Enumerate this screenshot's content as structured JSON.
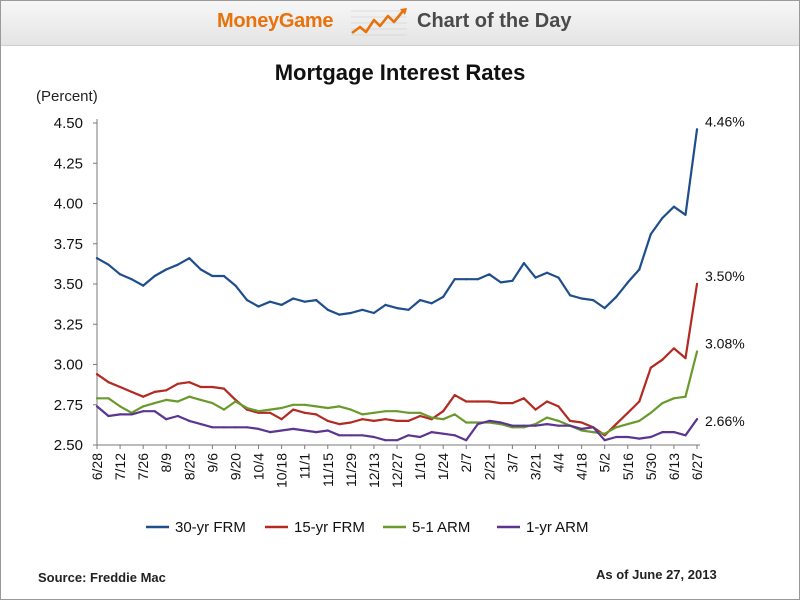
{
  "banner": {
    "brand": "MoneyGame",
    "title": "Chart of the Day",
    "icon": "rising-chart-icon",
    "brand_color": "#e8720c"
  },
  "footer": {
    "source": "Source: Freddie Mac",
    "as_of": "As of June 27, 2013"
  },
  "chart_data": {
    "type": "line",
    "title": "Mortgage Interest Rates",
    "unit_label": "(Percent)",
    "ylim": [
      2.5,
      4.5
    ],
    "yticks": [
      "2.50",
      "2.75",
      "3.00",
      "3.25",
      "3.50",
      "3.75",
      "4.00",
      "4.25",
      "4.50"
    ],
    "xtick_labels": [
      "6/28",
      "7/12",
      "7/26",
      "8/9",
      "8/23",
      "9/6",
      "9/20",
      "10/4",
      "10/18",
      "11/1",
      "11/15",
      "11/29",
      "12/13",
      "12/27",
      "1/10",
      "1/24",
      "2/7",
      "2/21",
      "3/7",
      "3/21",
      "4/4",
      "4/18",
      "5/2",
      "5/16",
      "5/30",
      "6/13",
      "6/27"
    ],
    "grid": false,
    "legend_position": "bottom",
    "series": [
      {
        "name": "30-yr FRM",
        "color": "#1f4e8c",
        "end_label": "4.46%",
        "values": [
          3.66,
          3.62,
          3.56,
          3.53,
          3.49,
          3.55,
          3.59,
          3.62,
          3.66,
          3.59,
          3.55,
          3.55,
          3.49,
          3.4,
          3.36,
          3.39,
          3.37,
          3.41,
          3.39,
          3.4,
          3.34,
          3.31,
          3.32,
          3.34,
          3.32,
          3.37,
          3.35,
          3.34,
          3.4,
          3.38,
          3.42,
          3.53,
          3.53,
          3.53,
          3.56,
          3.51,
          3.52,
          3.63,
          3.54,
          3.57,
          3.54,
          3.43,
          3.41,
          3.4,
          3.35,
          3.42,
          3.51,
          3.59,
          3.81,
          3.91,
          3.98,
          3.93,
          4.46
        ]
      },
      {
        "name": "15-yr FRM",
        "color": "#b22a22",
        "end_label": "3.50%",
        "values": [
          2.94,
          2.89,
          2.86,
          2.83,
          2.8,
          2.83,
          2.84,
          2.88,
          2.89,
          2.86,
          2.86,
          2.85,
          2.78,
          2.72,
          2.7,
          2.7,
          2.66,
          2.72,
          2.7,
          2.69,
          2.65,
          2.63,
          2.64,
          2.66,
          2.65,
          2.66,
          2.65,
          2.65,
          2.68,
          2.66,
          2.71,
          2.81,
          2.77,
          2.77,
          2.77,
          2.76,
          2.76,
          2.79,
          2.72,
          2.77,
          2.74,
          2.65,
          2.64,
          2.61,
          2.56,
          2.63,
          2.7,
          2.77,
          2.98,
          3.03,
          3.1,
          3.04,
          3.5
        ]
      },
      {
        "name": "5-1 ARM",
        "color": "#6a9a2c",
        "end_label": "3.08%",
        "values": [
          2.79,
          2.79,
          2.74,
          2.7,
          2.74,
          2.76,
          2.78,
          2.77,
          2.8,
          2.78,
          2.76,
          2.72,
          2.77,
          2.73,
          2.71,
          2.72,
          2.73,
          2.75,
          2.75,
          2.74,
          2.73,
          2.74,
          2.72,
          2.69,
          2.7,
          2.71,
          2.71,
          2.7,
          2.7,
          2.67,
          2.66,
          2.69,
          2.64,
          2.64,
          2.64,
          2.63,
          2.61,
          2.61,
          2.63,
          2.67,
          2.65,
          2.62,
          2.59,
          2.58,
          2.57,
          2.61,
          2.63,
          2.65,
          2.7,
          2.76,
          2.79,
          2.8,
          3.08
        ]
      },
      {
        "name": "1-yr ARM",
        "color": "#5b3590",
        "end_label": "2.66%",
        "values": [
          2.74,
          2.68,
          2.69,
          2.69,
          2.71,
          2.71,
          2.66,
          2.68,
          2.65,
          2.63,
          2.61,
          2.61,
          2.61,
          2.61,
          2.6,
          2.58,
          2.59,
          2.6,
          2.59,
          2.58,
          2.59,
          2.56,
          2.56,
          2.56,
          2.55,
          2.53,
          2.53,
          2.56,
          2.55,
          2.58,
          2.57,
          2.56,
          2.53,
          2.63,
          2.65,
          2.64,
          2.62,
          2.62,
          2.62,
          2.63,
          2.62,
          2.62,
          2.6,
          2.61,
          2.53,
          2.55,
          2.55,
          2.54,
          2.55,
          2.58,
          2.58,
          2.56,
          2.66
        ]
      }
    ]
  }
}
